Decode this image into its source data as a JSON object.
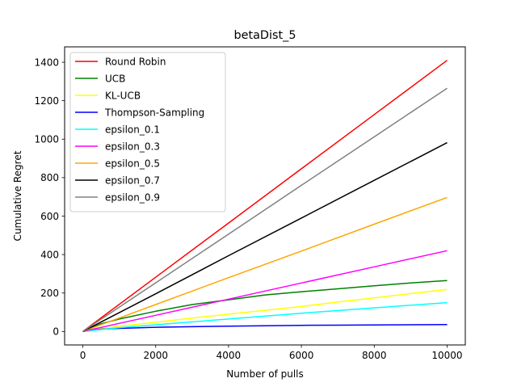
{
  "chart_data": {
    "type": "line",
    "title": "betaDist_5",
    "xlabel": "Number of pulls",
    "ylabel": "Cumulative Regret",
    "xlim": [
      -500,
      10500
    ],
    "ylim": [
      -70,
      1480
    ],
    "xticks": [
      0,
      2000,
      4000,
      6000,
      8000,
      10000
    ],
    "yticks": [
      0,
      200,
      400,
      600,
      800,
      1000,
      1200,
      1400
    ],
    "grid": false,
    "legend_position": "upper-left",
    "series": [
      {
        "name": "Round Robin",
        "color": "#ff0000",
        "x": [
          0,
          2000,
          4000,
          6000,
          8000,
          10000
        ],
        "y": [
          0,
          282,
          564,
          846,
          1128,
          1410
        ]
      },
      {
        "name": "UCB",
        "color": "#008000",
        "x": [
          0,
          500,
          1000,
          2000,
          3000,
          4000,
          5000,
          6000,
          7000,
          8000,
          9000,
          10000
        ],
        "y": [
          0,
          40,
          65,
          105,
          140,
          165,
          190,
          207,
          222,
          238,
          252,
          265
        ]
      },
      {
        "name": "KL-UCB",
        "color": "#ffff00",
        "x": [
          0,
          1000,
          2000,
          3000,
          4000,
          5000,
          6000,
          7000,
          8000,
          9000,
          10000
        ],
        "y": [
          0,
          28,
          48,
          70,
          90,
          110,
          130,
          153,
          175,
          197,
          218
        ]
      },
      {
        "name": "Thompson-Sampling",
        "color": "#0000ff",
        "x": [
          0,
          500,
          1000,
          2000,
          3000,
          4000,
          5000,
          6000,
          7000,
          8000,
          9000,
          10000
        ],
        "y": [
          0,
          12,
          16,
          22,
          25,
          28,
          30,
          32,
          33,
          34,
          35,
          36
        ]
      },
      {
        "name": "epsilon_0.1",
        "color": "#00ffff",
        "x": [
          0,
          1000,
          2000,
          4000,
          6000,
          8000,
          10000
        ],
        "y": [
          0,
          20,
          35,
          65,
          95,
          123,
          150
        ]
      },
      {
        "name": "epsilon_0.3",
        "color": "#ff00ff",
        "x": [
          0,
          2000,
          4000,
          6000,
          8000,
          10000
        ],
        "y": [
          0,
          84,
          168,
          252,
          336,
          420
        ]
      },
      {
        "name": "epsilon_0.5",
        "color": "#ffa500",
        "x": [
          0,
          2000,
          4000,
          6000,
          8000,
          10000
        ],
        "y": [
          0,
          140,
          280,
          418,
          558,
          697
        ]
      },
      {
        "name": "epsilon_0.7",
        "color": "#000000",
        "x": [
          0,
          2000,
          4000,
          6000,
          8000,
          10000
        ],
        "y": [
          0,
          196,
          394,
          590,
          786,
          982
        ]
      },
      {
        "name": "epsilon_0.9",
        "color": "#808080",
        "x": [
          0,
          2000,
          4000,
          6000,
          8000,
          10000
        ],
        "y": [
          0,
          253,
          506,
          760,
          1012,
          1265
        ]
      }
    ]
  }
}
